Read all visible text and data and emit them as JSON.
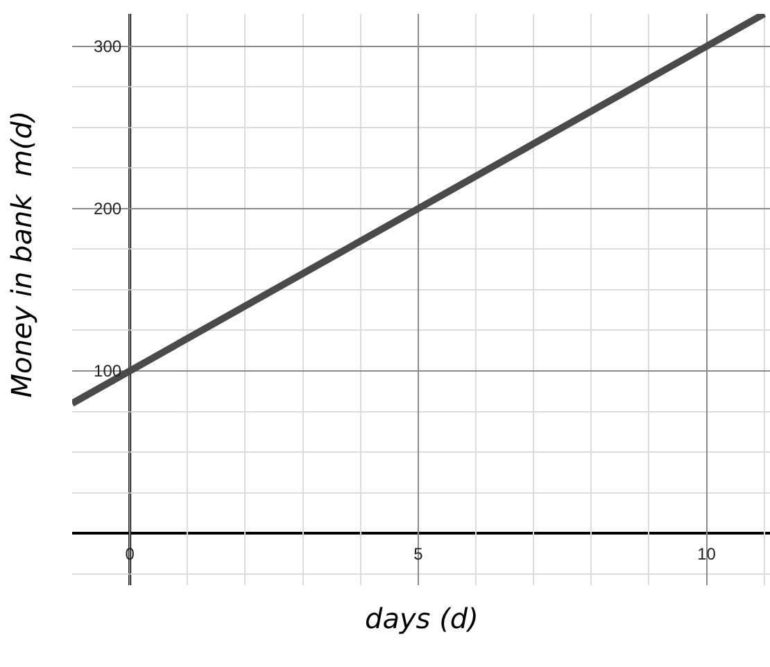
{
  "chart_data": {
    "type": "line",
    "xlabel": "days (d)",
    "ylabel": "Money in bank  m(d)",
    "x": [
      -1,
      11
    ],
    "series": [
      {
        "color": "#4a4a4a",
        "values": [
          80,
          320
        ]
      }
    ],
    "xlim": [
      -1,
      11.1
    ],
    "ylim": [
      -32,
      320
    ],
    "xticks": [
      0,
      {
        "value": 1,
        "label": null
      },
      {
        "value": 2,
        "label": null
      },
      {
        "value": 3,
        "label": null
      },
      {
        "value": 4,
        "label": null
      },
      5,
      {
        "value": 6,
        "label": null
      },
      {
        "value": 7,
        "label": null
      },
      {
        "value": 8,
        "label": null
      },
      {
        "value": 9,
        "label": null
      },
      10,
      {
        "value": 11,
        "label": null
      }
    ],
    "yticks": [
      {
        "value": -25,
        "label": null
      },
      {
        "value": 25,
        "label": null
      },
      {
        "value": 50,
        "label": null
      },
      {
        "value": 75,
        "label": null
      },
      100,
      {
        "value": 125,
        "label": null
      },
      {
        "value": 150,
        "label": null
      },
      {
        "value": 175,
        "label": null
      },
      200,
      {
        "value": 225,
        "label": null
      },
      {
        "value": 250,
        "label": null
      },
      {
        "value": 275,
        "label": null
      },
      300
    ],
    "grid": true,
    "marker": "none",
    "line_style": "solid"
  }
}
